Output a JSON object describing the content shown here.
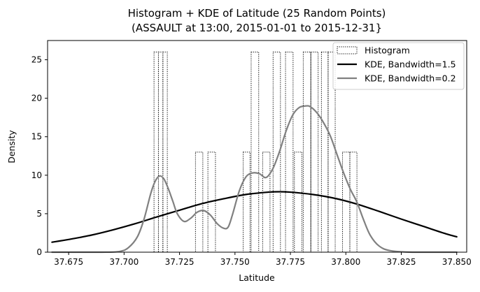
{
  "chart_data": {
    "type": "histogram",
    "title": "Histogram + KDE of Latitude (25 Random Points)",
    "subtitle": "(ASSAULT at 13:00,  2015-01-01 to 2015-12-31}",
    "xlabel": "Latitude",
    "ylabel": "Density",
    "xlim": [
      37.6655,
      37.8545
    ],
    "ylim": [
      0,
      27.5
    ],
    "x_ticks": [
      37.675,
      37.7,
      37.725,
      37.75,
      37.775,
      37.8,
      37.825,
      37.85
    ],
    "x_tick_labels": [
      "37.675",
      "37.700",
      "37.725",
      "37.750",
      "37.775",
      "37.800",
      "37.825",
      "37.850"
    ],
    "y_ticks": [
      0,
      5,
      10,
      15,
      20,
      25
    ],
    "y_tick_labels": [
      "0",
      "5",
      "10",
      "15",
      "20",
      "25"
    ],
    "grid": false,
    "legend_position": "top-right",
    "legend": [
      {
        "label": "Histogram",
        "style": "dotted-box",
        "color": "#000000"
      },
      {
        "label": "KDE, Bandwidth=1.5",
        "style": "line",
        "color": "#000000"
      },
      {
        "label": "KDE, Bandwidth=0.2",
        "style": "line",
        "color": "#808080"
      }
    ],
    "histogram": {
      "bins": [
        {
          "x0": 37.7135,
          "x1": 37.7155,
          "density": 26
        },
        {
          "x0": 37.7155,
          "x1": 37.7175,
          "density": 26
        },
        {
          "x0": 37.7175,
          "x1": 37.7195,
          "density": 26
        },
        {
          "x0": 37.7322,
          "x1": 37.7355,
          "density": 13
        },
        {
          "x0": 37.7378,
          "x1": 37.7412,
          "density": 13
        },
        {
          "x0": 37.7537,
          "x1": 37.7568,
          "density": 13
        },
        {
          "x0": 37.7573,
          "x1": 37.7607,
          "density": 26
        },
        {
          "x0": 37.7625,
          "x1": 37.7658,
          "density": 13
        },
        {
          "x0": 37.7672,
          "x1": 37.7705,
          "density": 26
        },
        {
          "x0": 37.7728,
          "x1": 37.7762,
          "density": 26
        },
        {
          "x0": 37.7768,
          "x1": 37.7802,
          "density": 13
        },
        {
          "x0": 37.7808,
          "x1": 37.7842,
          "density": 26
        },
        {
          "x0": 37.7842,
          "x1": 37.7875,
          "density": 26
        },
        {
          "x0": 37.789,
          "x1": 37.792,
          "density": 26
        },
        {
          "x0": 37.792,
          "x1": 37.7952,
          "density": 26
        },
        {
          "x0": 37.7985,
          "x1": 37.8018,
          "density": 13
        },
        {
          "x0": 37.8018,
          "x1": 37.805,
          "density": 13
        }
      ],
      "color": "#000000"
    },
    "series": [
      {
        "name": "KDE, Bandwidth=1.5",
        "color": "#000000",
        "x": [
          37.6675,
          37.675,
          37.685,
          37.695,
          37.705,
          37.715,
          37.725,
          37.735,
          37.745,
          37.755,
          37.765,
          37.77,
          37.775,
          37.785,
          37.795,
          37.805,
          37.815,
          37.825,
          37.835,
          37.845,
          37.85
        ],
        "y": [
          1.3,
          1.65,
          2.2,
          2.9,
          3.7,
          4.6,
          5.45,
          6.3,
          6.95,
          7.5,
          7.8,
          7.85,
          7.8,
          7.5,
          7.0,
          6.25,
          5.3,
          4.3,
          3.35,
          2.4,
          2.0
        ]
      },
      {
        "name": "KDE, Bandwidth=0.2",
        "color": "#808080",
        "x": [
          37.6675,
          37.69,
          37.698,
          37.702,
          37.706,
          37.709,
          37.712,
          37.714,
          37.716,
          37.718,
          37.72,
          37.722,
          37.724,
          37.727,
          37.73,
          37.733,
          37.736,
          37.739,
          37.742,
          37.745,
          37.747,
          37.749,
          37.752,
          37.755,
          37.758,
          37.761,
          37.764,
          37.767,
          37.77,
          37.773,
          37.776,
          37.779,
          37.782,
          37.784,
          37.787,
          37.79,
          37.793,
          37.796,
          37.799,
          37.802,
          37.805,
          37.808,
          37.811,
          37.815,
          37.82,
          37.83,
          37.85
        ],
        "y": [
          0,
          0,
          0.1,
          0.6,
          2.0,
          4.3,
          7.6,
          9.2,
          9.9,
          9.5,
          8.2,
          6.6,
          5.0,
          4.0,
          4.4,
          5.2,
          5.4,
          4.8,
          3.7,
          3.1,
          3.3,
          5.0,
          8.0,
          9.8,
          10.3,
          10.2,
          9.7,
          10.8,
          13.0,
          15.7,
          17.8,
          18.8,
          19.0,
          18.9,
          18.1,
          16.8,
          15.1,
          12.7,
          10.3,
          8.2,
          6.5,
          4.2,
          2.2,
          0.8,
          0.2,
          0,
          0
        ]
      }
    ]
  }
}
